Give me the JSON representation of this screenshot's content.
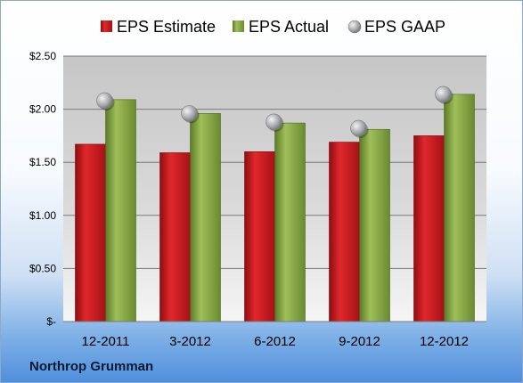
{
  "company": "Northrop Grumman",
  "chart_data": {
    "type": "bar",
    "categories": [
      "12-2011",
      "3-2012",
      "6-2012",
      "9-2012",
      "12-2012"
    ],
    "series": [
      {
        "name": "EPS Estimate",
        "kind": "bar",
        "color": "#c0181c",
        "values": [
          1.67,
          1.59,
          1.6,
          1.69,
          1.75
        ]
      },
      {
        "name": "EPS Actual",
        "kind": "bar",
        "color": "#7e9e3c",
        "values": [
          2.09,
          1.96,
          1.87,
          1.81,
          2.14
        ]
      },
      {
        "name": "EPS GAAP",
        "kind": "marker",
        "color": "#a8aaad",
        "values": [
          2.08,
          1.96,
          1.88,
          1.82,
          2.14
        ]
      }
    ],
    "y_ticks": [
      {
        "value": 0,
        "label": "$-"
      },
      {
        "value": 0.5,
        "label": "$0.50"
      },
      {
        "value": 1.0,
        "label": "$1.00"
      },
      {
        "value": 1.5,
        "label": "$1.50"
      },
      {
        "value": 2.0,
        "label": "$2.00"
      },
      {
        "value": 2.5,
        "label": "$2.50"
      }
    ],
    "ylim": [
      0,
      2.5
    ],
    "grid": true,
    "legend": "top"
  }
}
